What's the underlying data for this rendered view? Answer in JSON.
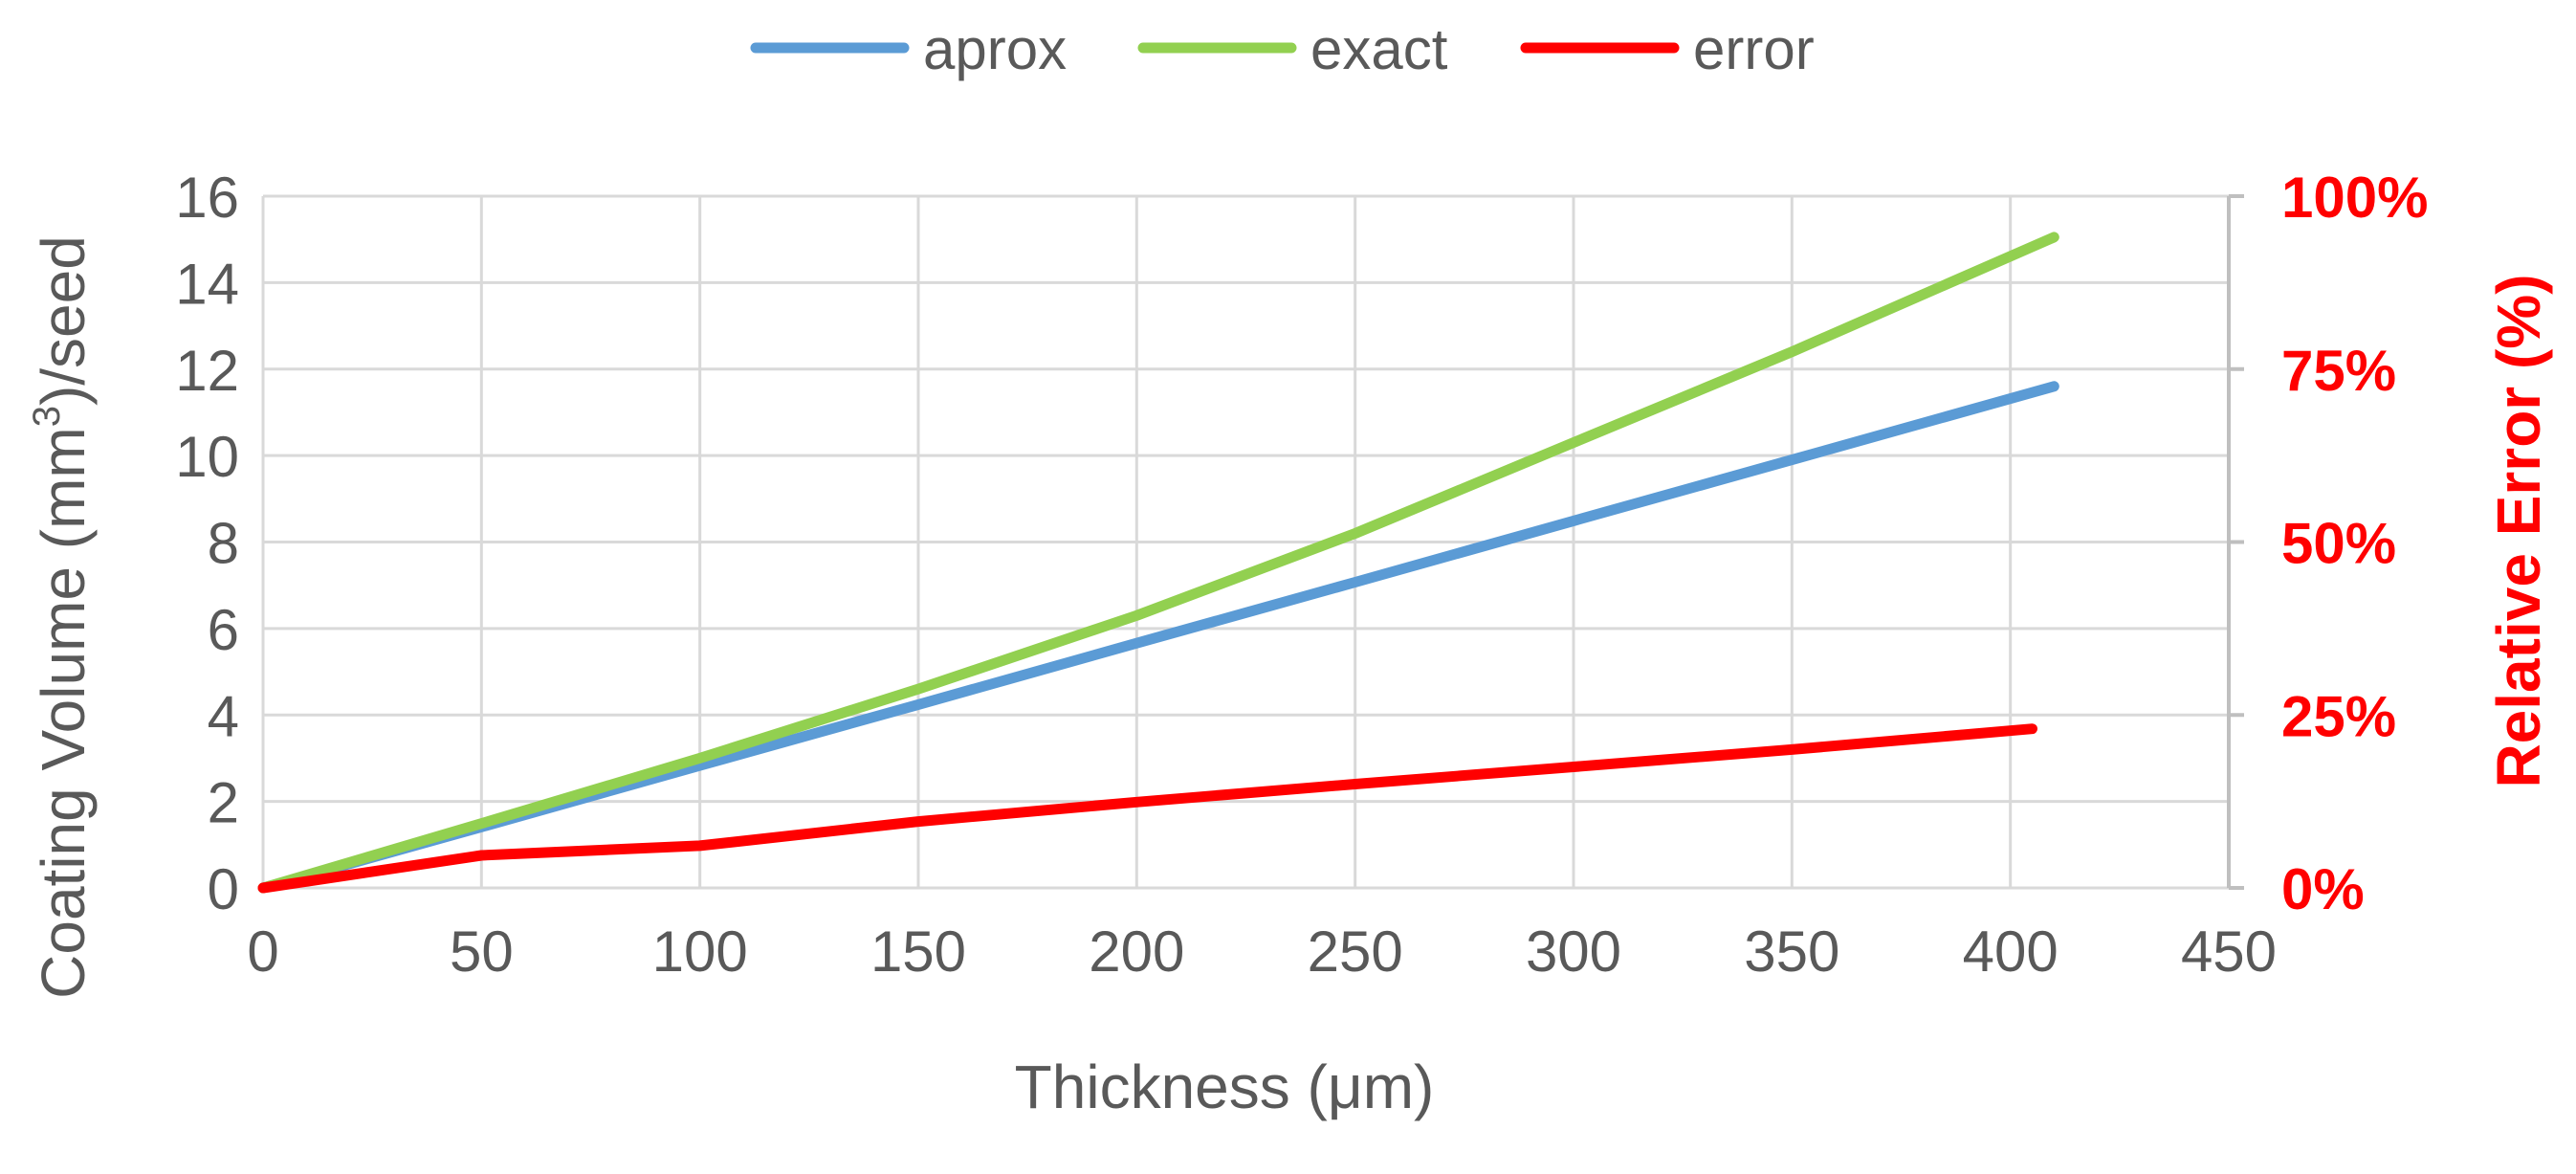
{
  "chart_data": {
    "type": "line",
    "title": "",
    "xlabel": "Thickness (μm)",
    "ylabel": {
      "main": "Coating Volume (mm",
      "superscript": "3",
      "suffix": ")/seed"
    },
    "y2label": "Relative Error (%)",
    "xlim": [
      0,
      450
    ],
    "ylim": [
      0,
      16
    ],
    "y2lim": [
      0,
      1
    ],
    "xticks": [
      0,
      50,
      100,
      150,
      200,
      250,
      300,
      350,
      400,
      450
    ],
    "yticks": [
      0,
      2,
      4,
      6,
      8,
      10,
      12,
      14,
      16
    ],
    "y2ticks": [
      {
        "value": 0,
        "label": "0%"
      },
      {
        "value": 0.25,
        "label": "25%"
      },
      {
        "value": 0.5,
        "label": "50%"
      },
      {
        "value": 0.75,
        "label": "75%"
      },
      {
        "value": 1,
        "label": "100%"
      }
    ],
    "grid": true,
    "legend_position": "top",
    "series": [
      {
        "name": "aprox",
        "axis": "left",
        "color": "#5b9bd5",
        "x": [
          0,
          50,
          100,
          150,
          200,
          250,
          300,
          350,
          410
        ],
        "y": [
          0,
          1.41,
          2.83,
          4.24,
          5.66,
          7.07,
          8.49,
          9.9,
          11.6
        ]
      },
      {
        "name": "exact",
        "axis": "left",
        "color": "#92d050",
        "x": [
          0,
          50,
          100,
          150,
          200,
          250,
          300,
          350,
          410
        ],
        "y": [
          0,
          1.49,
          3.0,
          4.6,
          6.3,
          8.2,
          10.3,
          12.4,
          15.05
        ]
      },
      {
        "name": "error",
        "axis": "right",
        "color": "#ff0000",
        "x": [
          0,
          50,
          100,
          150,
          200,
          250,
          300,
          350,
          405
        ],
        "y": [
          0,
          0.047,
          0.061,
          0.096,
          0.124,
          0.15,
          0.175,
          0.2,
          0.23
        ]
      }
    ]
  }
}
